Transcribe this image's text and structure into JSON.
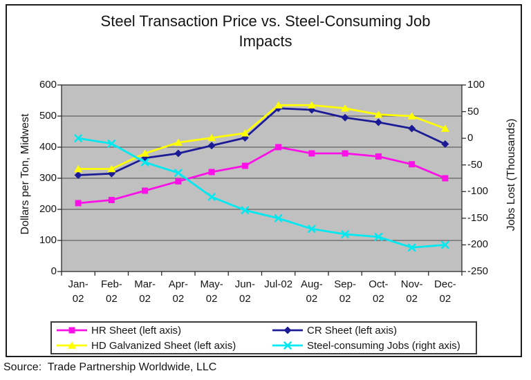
{
  "title": "Steel Transaction Price vs. Steel-Consuming Job\nImpacts",
  "source_line": "Source:  Trade Partnership Worldwide, LLC",
  "chart_data": {
    "type": "line",
    "title": "Steel Transaction Price vs. Steel-Consuming Job Impacts",
    "plot_bg": "#C0C0C0",
    "grid": true,
    "legend_position": "bottom",
    "categories": [
      "Jan-02",
      "Feb-02",
      "Mar-02",
      "Apr-02",
      "May-02",
      "Jun-02",
      "Jul-02",
      "Aug-02",
      "Sep-02",
      "Oct-02",
      "Nov-02",
      "Dec-02"
    ],
    "x_tick_lines": [
      [
        "Jan-",
        "02"
      ],
      [
        "Feb-",
        "02"
      ],
      [
        "Mar-",
        "02"
      ],
      [
        "Apr-",
        "02"
      ],
      [
        "May-",
        "02"
      ],
      [
        "Jun-",
        "02"
      ],
      [
        "Jul-02"
      ],
      [
        "Aug-",
        "02"
      ],
      [
        "Sep-",
        "02"
      ],
      [
        "Oct-",
        "02"
      ],
      [
        "Nov-",
        "02"
      ],
      [
        "Dec-",
        "02"
      ]
    ],
    "left_axis": {
      "title": "Dollars per Ton, Midwest",
      "min": 0,
      "max": 600,
      "step": 100
    },
    "right_axis": {
      "title": "Jobs Lost (Thousands)",
      "min": -250,
      "max": 100,
      "step": 50
    },
    "series": [
      {
        "name": "HR Sheet (left axis)",
        "axis": "left",
        "color": "#FB10E8",
        "marker": "square",
        "values": [
          220,
          230,
          260,
          290,
          320,
          340,
          400,
          380,
          380,
          370,
          345,
          300
        ]
      },
      {
        "name": "CR Sheet (left axis)",
        "axis": "left",
        "color": "#1B1B96",
        "marker": "diamond",
        "values": [
          310,
          315,
          365,
          380,
          405,
          430,
          525,
          520,
          495,
          480,
          460,
          410
        ]
      },
      {
        "name": "HD Galvanized Sheet (left axis)",
        "axis": "left",
        "color": "#FFFF00",
        "marker": "triangle",
        "values": [
          330,
          330,
          380,
          415,
          430,
          445,
          535,
          535,
          525,
          505,
          500,
          460
        ]
      },
      {
        "name": "Steel-consuming Jobs (right axis)",
        "axis": "right",
        "color": "#00E8F0",
        "marker": "x",
        "values": [
          0,
          -10,
          -45,
          -65,
          -110,
          -135,
          -150,
          -170,
          -180,
          -185,
          -205,
          -200
        ]
      }
    ]
  }
}
